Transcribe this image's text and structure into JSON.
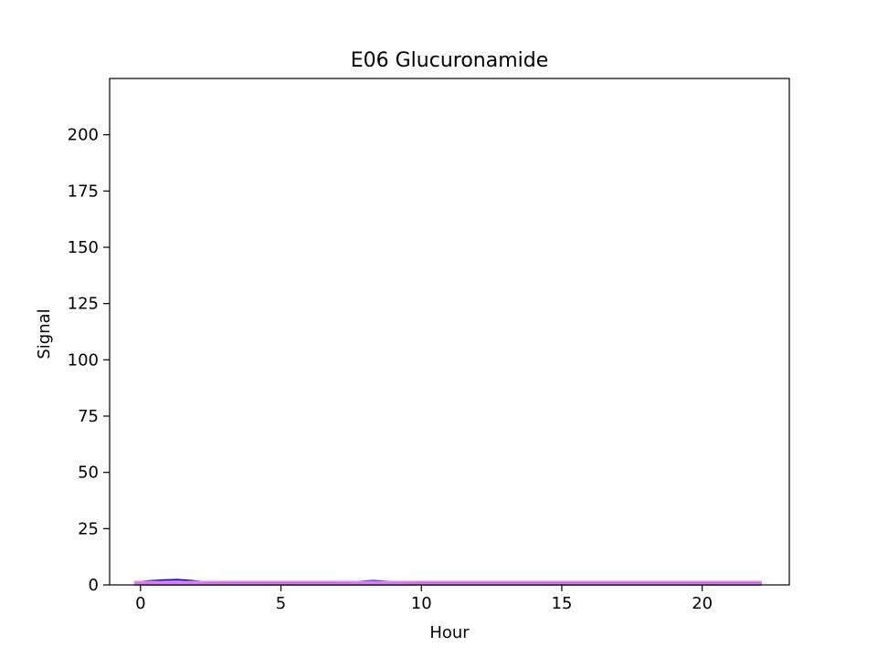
{
  "chart_data": {
    "type": "area",
    "title": "E06 Glucuronamide",
    "xlabel": "Hour",
    "ylabel": "Signal",
    "xlim": [
      -1.1,
      23.1
    ],
    "ylim": [
      0,
      225
    ],
    "xticks": [
      0,
      5,
      10,
      15,
      20
    ],
    "yticks": [
      0,
      25,
      50,
      75,
      100,
      125,
      150,
      175,
      200
    ],
    "grid": false,
    "series": [
      {
        "color": "#0000ff",
        "x": [
          -0.2,
          0.3,
          0.8,
          1.3,
          1.8,
          2.3,
          3,
          4,
          5,
          6,
          7,
          7.6,
          8.3,
          9,
          10,
          12,
          14,
          16,
          18,
          20,
          22.1
        ],
        "values": [
          1.2,
          1.8,
          2.2,
          2.4,
          2.0,
          1.3,
          1.1,
          1.1,
          1.1,
          1.1,
          1.1,
          1.4,
          1.9,
          1.4,
          1.1,
          1.1,
          1.1,
          1.1,
          1.1,
          1.1,
          1.1
        ]
      },
      {
        "color": "#ee82ee",
        "x": [
          -0.2,
          2,
          4,
          6,
          8,
          10,
          12,
          14,
          16,
          18,
          20,
          22.1
        ],
        "values": [
          1.5,
          1.5,
          1.5,
          1.5,
          1.5,
          1.5,
          1.5,
          1.5,
          1.5,
          1.5,
          1.5,
          1.5
        ]
      }
    ]
  }
}
